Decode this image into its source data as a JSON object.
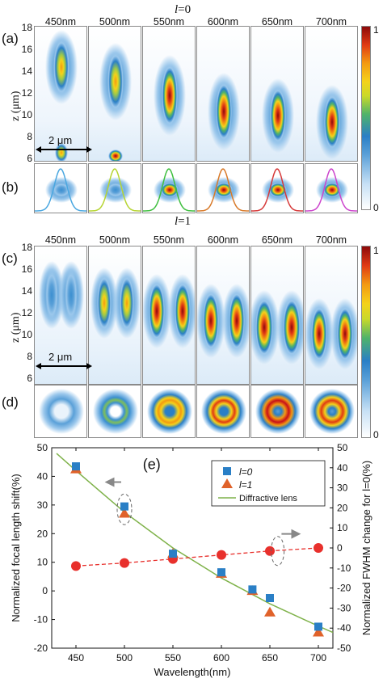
{
  "figure": {
    "panel_a_label": "(a)",
    "panel_b_label": "(b)",
    "panel_c_label": "(c)",
    "panel_d_label": "(d)",
    "panel_e_label": "(e)",
    "title_l0_prefix": "l",
    "title_l0_suffix": "=0",
    "title_l1_prefix": "l",
    "title_l1_suffix": "=1",
    "wavelength_labels": [
      "450nm",
      "500nm",
      "550nm",
      "600nm",
      "650nm",
      "700nm"
    ],
    "wavelength_labels_c": [
      "450nm",
      "500nm",
      "550nm",
      "600nm",
      "650nm",
      "700nm"
    ],
    "z_axis_label": "z (μm)",
    "z_ticks": [
      "18",
      "16",
      "14",
      "12",
      "10",
      "8",
      "6"
    ],
    "scale_bar_label": "2 μm",
    "colorbar_top": "1",
    "colorbar_bottom": "0",
    "profile_colors": [
      "#4aa7e0",
      "#b6d432",
      "#3fbf3f",
      "#d87a2a",
      "#d63a3a",
      "#cc44cc"
    ]
  },
  "chart_data": {
    "type": "scatter",
    "xlabel": "Wavelength(nm)",
    "ylabel_left": "Normalized focal length shift(%)",
    "ylabel_right": "Normalized FWHM change for l=0(%)",
    "xlim": [
      425,
      715
    ],
    "ylim_left": [
      -20,
      50
    ],
    "ylim_right": [
      -50,
      50
    ],
    "x_ticks": [
      450,
      500,
      550,
      600,
      650,
      700
    ],
    "y_ticks_left": [
      -20,
      -10,
      0,
      10,
      20,
      30,
      40,
      50
    ],
    "y_ticks_right": [
      -50,
      -40,
      -30,
      -20,
      -10,
      0,
      10,
      20,
      30,
      40,
      50
    ],
    "legend": [
      "l=0",
      "l=1",
      "Diffractive lens"
    ],
    "legend_position": "top-right",
    "series": [
      {
        "name": "l=0",
        "axis": "left",
        "marker": "square",
        "color": "#2a7fc6",
        "x": [
          450,
          500,
          550,
          600,
          632,
          650,
          700
        ],
        "y": [
          43.5,
          29.5,
          13,
          6.5,
          0.5,
          -2.5,
          -12.5
        ]
      },
      {
        "name": "l=1",
        "axis": "left",
        "marker": "triangle",
        "color": "#e0622a",
        "x": [
          450,
          500,
          550,
          600,
          632,
          650,
          700
        ],
        "y": [
          42.5,
          27,
          13,
          6,
          0,
          -7.5,
          -14.5
        ]
      },
      {
        "name": "Diffractive lens",
        "axis": "left",
        "marker": "line",
        "color": "#7fb24a",
        "x": [
          430,
          450,
          500,
          550,
          600,
          650,
          700,
          715
        ],
        "y": [
          48,
          42,
          27.5,
          15,
          4.5,
          -4.5,
          -12.3,
          -14.5
        ]
      },
      {
        "name": "FWHM",
        "axis": "right",
        "marker": "circle",
        "color": "#e8302c",
        "x": [
          450,
          500,
          550,
          600,
          650,
          700
        ],
        "y": [
          -9,
          -7.5,
          -5.5,
          -3.5,
          -1.5,
          0
        ]
      }
    ]
  }
}
